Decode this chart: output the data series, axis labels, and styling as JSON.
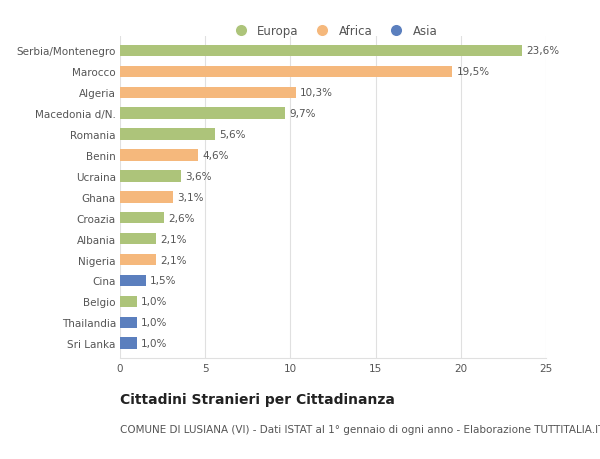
{
  "countries": [
    "Serbia/Montenegro",
    "Marocco",
    "Algeria",
    "Macedonia d/N.",
    "Romania",
    "Benin",
    "Ucraina",
    "Ghana",
    "Croazia",
    "Albania",
    "Nigeria",
    "Cina",
    "Belgio",
    "Thailandia",
    "Sri Lanka"
  ],
  "values": [
    23.6,
    19.5,
    10.3,
    9.7,
    5.6,
    4.6,
    3.6,
    3.1,
    2.6,
    2.1,
    2.1,
    1.5,
    1.0,
    1.0,
    1.0
  ],
  "labels": [
    "23,6%",
    "19,5%",
    "10,3%",
    "9,7%",
    "5,6%",
    "4,6%",
    "3,6%",
    "3,1%",
    "2,6%",
    "2,1%",
    "2,1%",
    "1,5%",
    "1,0%",
    "1,0%",
    "1,0%"
  ],
  "continents": [
    "Europa",
    "Africa",
    "Africa",
    "Europa",
    "Europa",
    "Africa",
    "Europa",
    "Africa",
    "Europa",
    "Europa",
    "Africa",
    "Asia",
    "Europa",
    "Asia",
    "Asia"
  ],
  "colors": {
    "Europa": "#adc47a",
    "Africa": "#f5b87c",
    "Asia": "#5b7fbe"
  },
  "xlim": [
    0,
    25
  ],
  "xticks": [
    0,
    5,
    10,
    15,
    20,
    25
  ],
  "title": "Cittadini Stranieri per Cittadinanza",
  "subtitle": "COMUNE DI LUSIANA (VI) - Dati ISTAT al 1° gennaio di ogni anno - Elaborazione TUTTITALIA.IT",
  "background_color": "#ffffff",
  "grid_color": "#e0e0e0",
  "bar_height": 0.55,
  "label_fontsize": 7.5,
  "tick_fontsize": 7.5,
  "title_fontsize": 10,
  "subtitle_fontsize": 7.5,
  "legend_fontsize": 8.5,
  "legend_marker_size": 9
}
